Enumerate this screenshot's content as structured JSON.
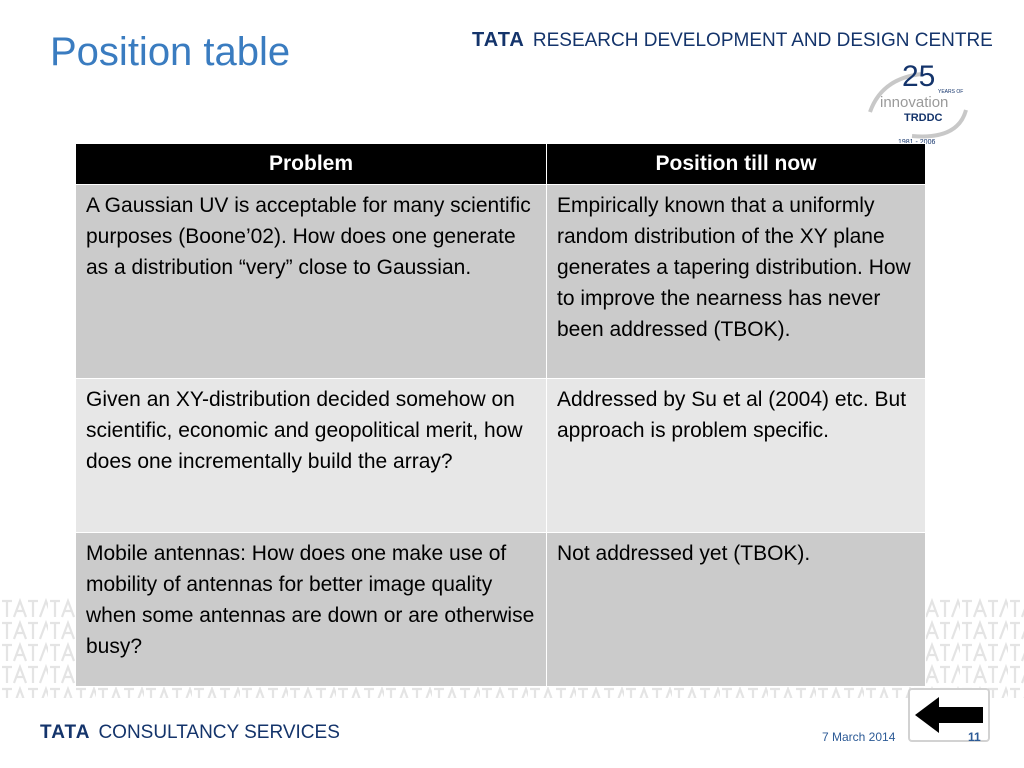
{
  "slide": {
    "title": "Position table"
  },
  "header": {
    "brand_tata": "TATA",
    "brand_rest": "RESEARCH DEVELOPMENT AND DESIGN CENTRE"
  },
  "logo": {
    "number": "25",
    "years_of": "YEARS OF",
    "innovation": "innovation",
    "trddc": "TRDDC",
    "years_range": "1981 - 2006"
  },
  "table": {
    "headers": [
      "Problem",
      "Position till now"
    ],
    "rows": [
      [
        "A Gaussian UV is acceptable for many scientific purposes (Boone’02). How does one generate as a distribution “very” close to Gaussian.",
        "Empirically known that a uniformly random distribution of the XY plane generates a tapering distribution. How to improve the nearness has never been addressed (TBOK)."
      ],
      [
        "Given an XY-distribution decided somehow on scientific, economic and geopolitical merit, how does one incrementally build the array?",
        "Addressed by Su et al (2004) etc. But approach is problem specific."
      ],
      [
        "Mobile antennas: How does one make use of mobility of antennas for better image quality when some antennas are down or are otherwise busy?",
        "Not addressed yet (TBOK)."
      ]
    ]
  },
  "footer": {
    "brand_tata": "TATA",
    "brand_rest": "CONSULTANCY SERVICES",
    "date": "7 March 2014",
    "page_number": "11"
  },
  "colors": {
    "title_blue": "#3a7cc0",
    "brand_navy": "#14346b",
    "header_black": "#000000",
    "row_dark": "#cbcbcb",
    "row_light": "#e7e7e7"
  },
  "icons": {
    "back_arrow": "back-arrow-icon"
  }
}
